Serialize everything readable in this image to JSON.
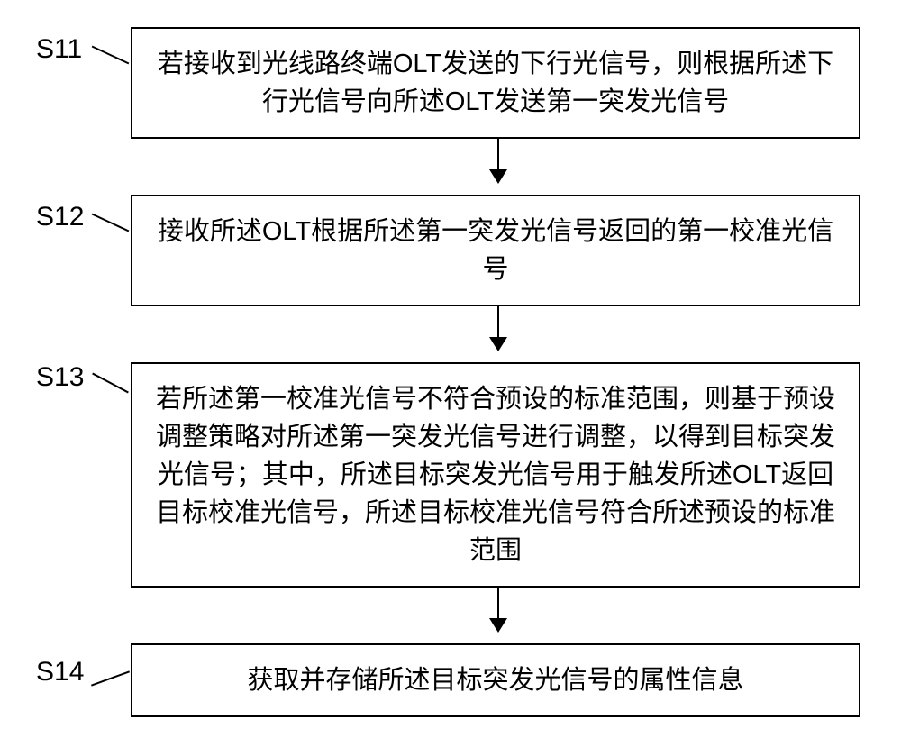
{
  "flowchart": {
    "type": "flowchart",
    "background_color": "#ffffff",
    "border_color": "#000000",
    "text_color": "#000000",
    "border_width": 2,
    "font_size": 29,
    "label_font_size": 30,
    "arrow_color": "#000000",
    "steps": [
      {
        "id": "S11",
        "label": "S11",
        "text": "若接收到光线路终端OLT发送的下行光信号，则根据所述下行光信号向所述OLT发送第一突发光信号"
      },
      {
        "id": "S12",
        "label": "S12",
        "text": "接收所述OLT根据所述第一突发光信号返回的第一校准光信号"
      },
      {
        "id": "S13",
        "label": "S13",
        "text": "若所述第一校准光信号不符合预设的标准范围，则基于预设调整策略对所述第一突发光信号进行调整，以得到目标突发光信号；其中，所述目标突发光信号用于触发所述OLT返回目标校准光信号，所述目标校准光信号符合所述预设的标准范围"
      },
      {
        "id": "S14",
        "label": "S14",
        "text": "获取并存储所述目标突发光信号的属性信息"
      }
    ],
    "edges": [
      {
        "from": "S11",
        "to": "S12"
      },
      {
        "from": "S12",
        "to": "S13"
      },
      {
        "from": "S13",
        "to": "S14"
      }
    ]
  }
}
